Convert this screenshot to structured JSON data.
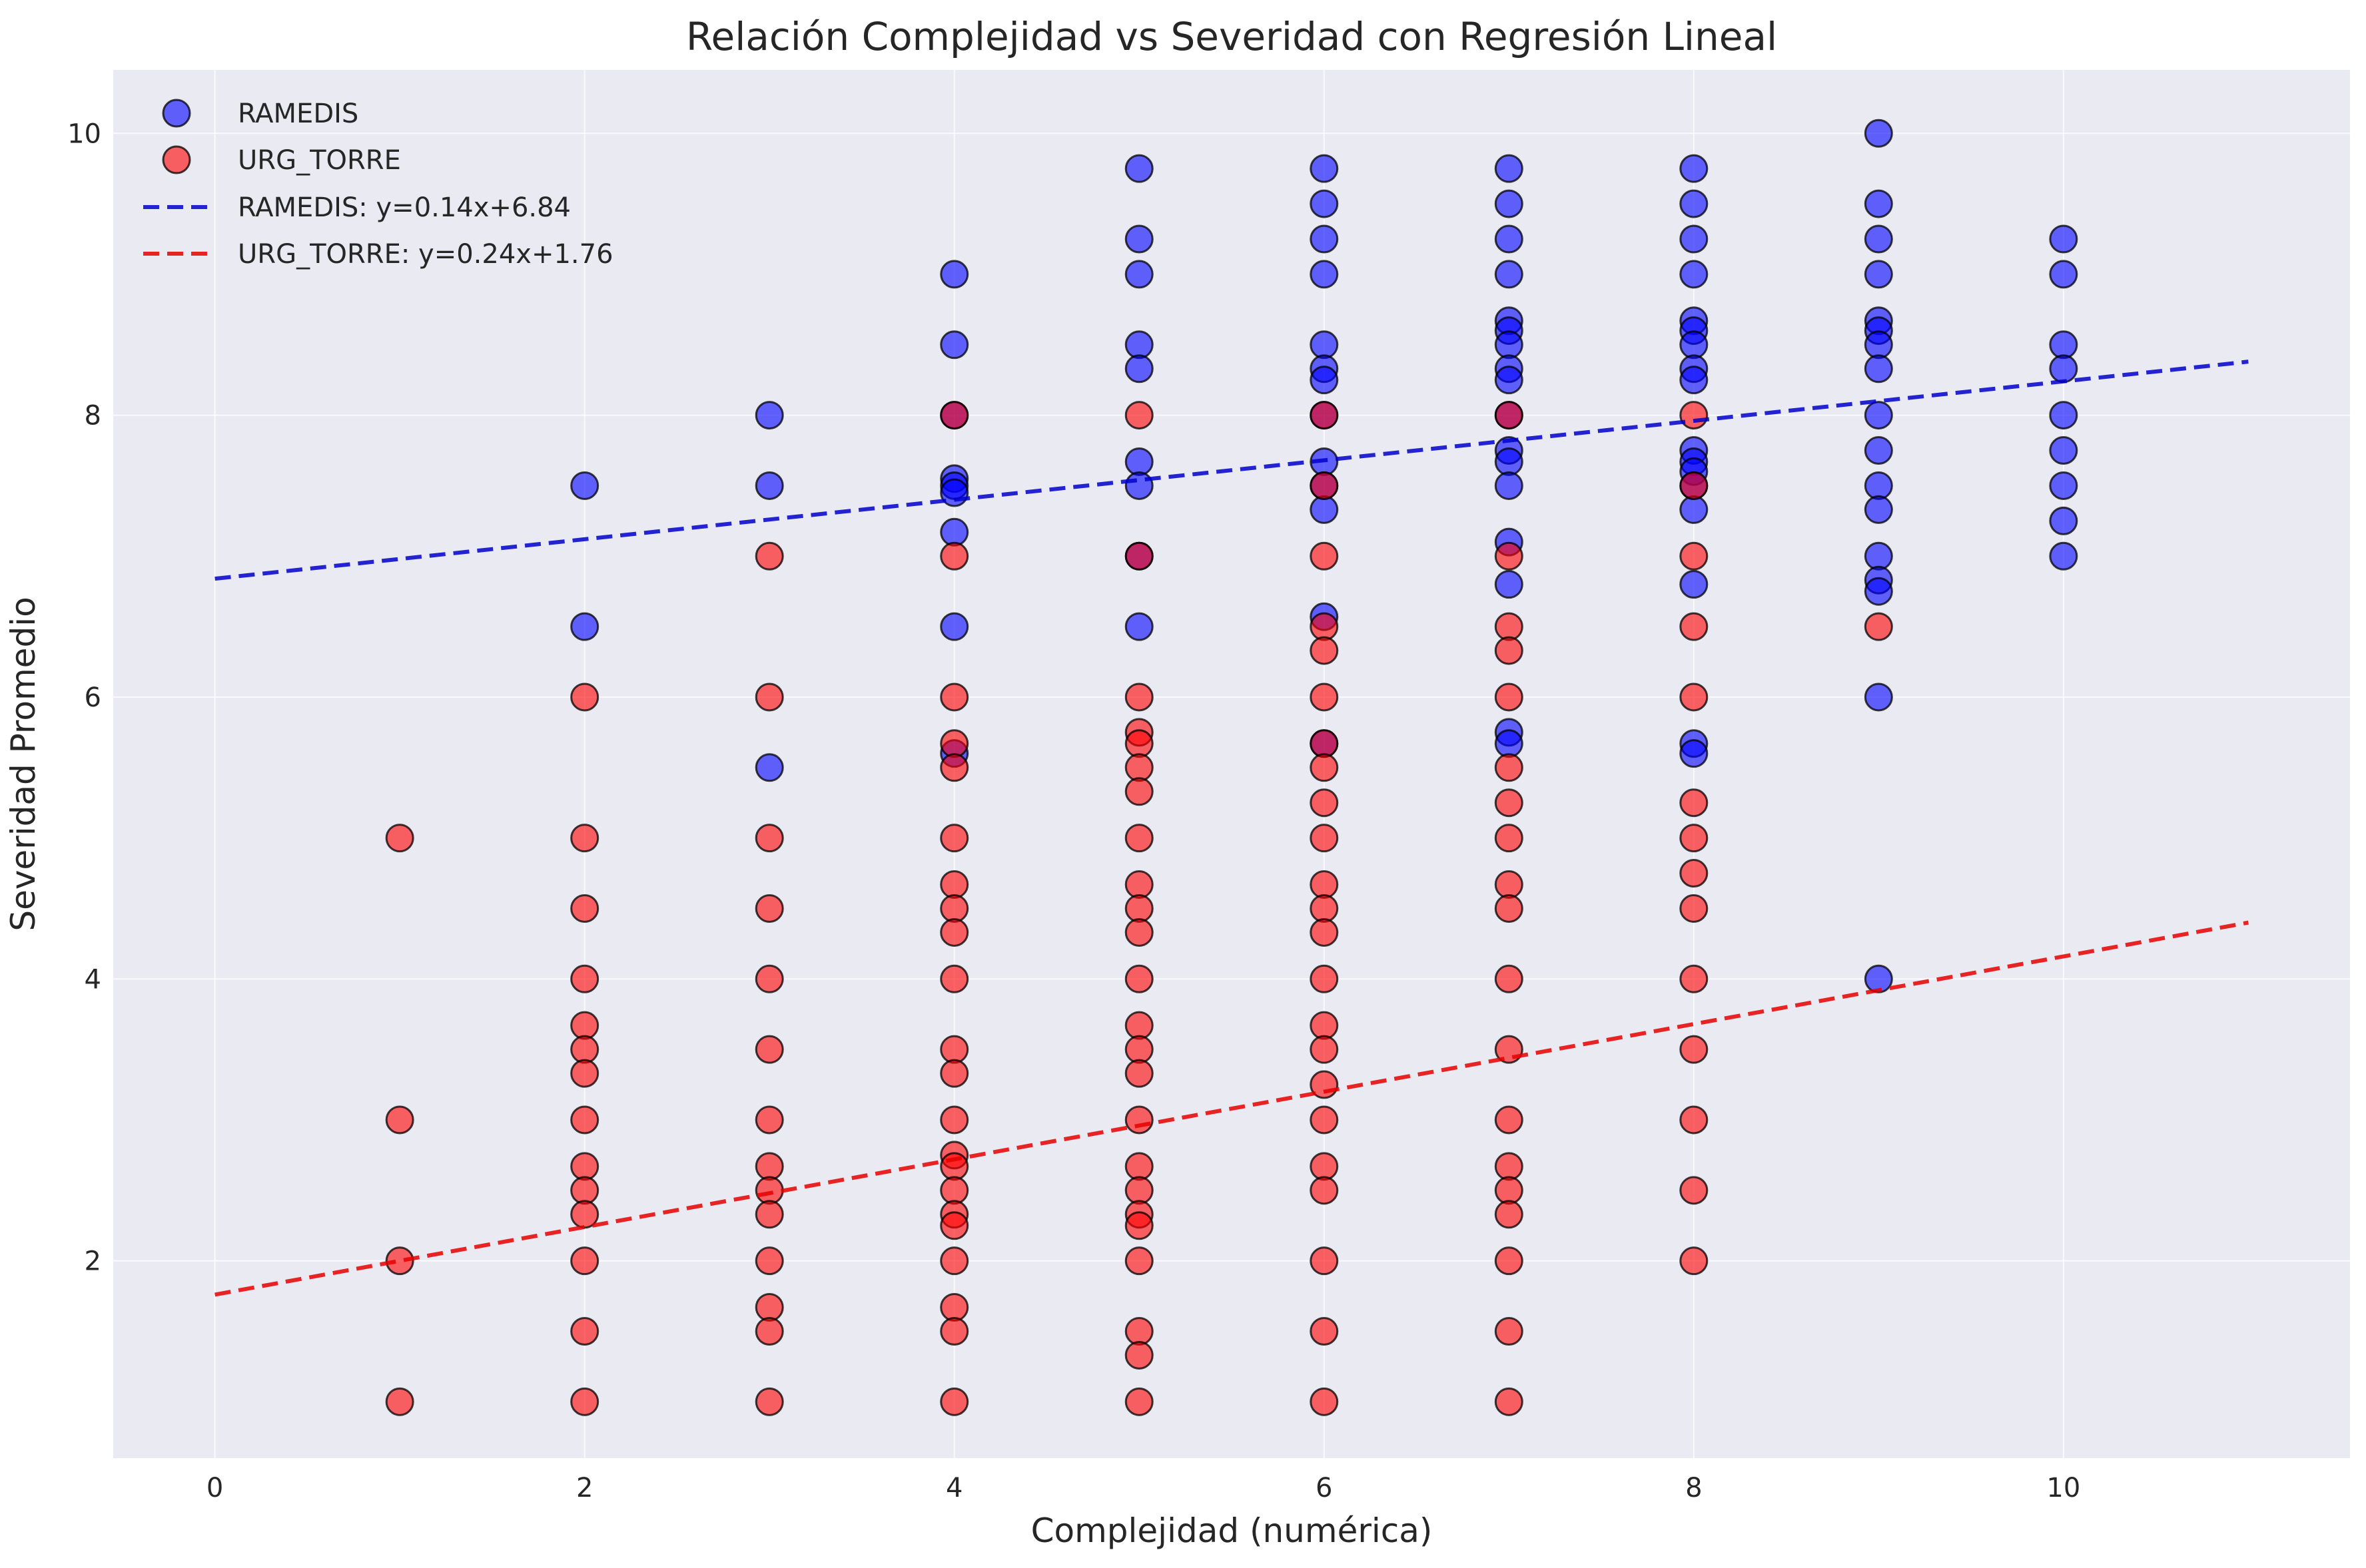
{
  "chart_data": {
    "type": "scatter",
    "title": "Relación Complejidad vs Severidad con Regresión Lineal",
    "xlabel": "Complejidad (numérica)",
    "ylabel": "Severidad Promedio",
    "xlim": [
      -0.55,
      11.55
    ],
    "ylim": [
      0.6,
      10.45
    ],
    "xticks": [
      0,
      2,
      4,
      6,
      8,
      10
    ],
    "yticks": [
      2,
      4,
      6,
      8,
      10
    ],
    "grid": true,
    "legend_position": "top-left",
    "background": "#eaeaf2",
    "series": [
      {
        "name": "RAMEDIS",
        "color": "#0000ff",
        "points": [
          [
            2,
            7.5
          ],
          [
            2,
            6.5
          ],
          [
            3,
            8.0
          ],
          [
            3,
            7.5
          ],
          [
            3,
            5.5
          ],
          [
            4,
            9.0
          ],
          [
            4,
            8.5
          ],
          [
            4,
            8.0
          ],
          [
            4,
            7.55
          ],
          [
            4,
            7.5
          ],
          [
            4,
            7.45
          ],
          [
            4,
            7.17
          ],
          [
            4,
            6.5
          ],
          [
            4,
            5.6
          ],
          [
            5,
            9.75
          ],
          [
            5,
            9.25
          ],
          [
            5,
            9.0
          ],
          [
            5,
            8.5
          ],
          [
            5,
            8.33
          ],
          [
            5,
            7.67
          ],
          [
            5,
            7.5
          ],
          [
            5,
            7.0
          ],
          [
            5,
            6.5
          ],
          [
            6,
            9.75
          ],
          [
            6,
            9.5
          ],
          [
            6,
            9.25
          ],
          [
            6,
            9.0
          ],
          [
            6,
            8.5
          ],
          [
            6,
            8.33
          ],
          [
            6,
            8.25
          ],
          [
            6,
            8.0
          ],
          [
            6,
            7.67
          ],
          [
            6,
            7.5
          ],
          [
            6,
            7.33
          ],
          [
            6,
            6.57
          ],
          [
            6,
            5.67
          ],
          [
            7,
            9.75
          ],
          [
            7,
            9.5
          ],
          [
            7,
            9.25
          ],
          [
            7,
            9.0
          ],
          [
            7,
            8.67
          ],
          [
            7,
            8.6
          ],
          [
            7,
            8.5
          ],
          [
            7,
            8.33
          ],
          [
            7,
            8.25
          ],
          [
            7,
            8.0
          ],
          [
            7,
            7.75
          ],
          [
            7,
            7.67
          ],
          [
            7,
            7.5
          ],
          [
            7,
            7.1
          ],
          [
            7,
            6.8
          ],
          [
            7,
            5.75
          ],
          [
            7,
            5.67
          ],
          [
            8,
            9.75
          ],
          [
            8,
            9.5
          ],
          [
            8,
            9.25
          ],
          [
            8,
            9.0
          ],
          [
            8,
            8.67
          ],
          [
            8,
            8.6
          ],
          [
            8,
            8.5
          ],
          [
            8,
            8.33
          ],
          [
            8,
            8.25
          ],
          [
            8,
            7.75
          ],
          [
            8,
            7.67
          ],
          [
            8,
            7.6
          ],
          [
            8,
            7.5
          ],
          [
            8,
            7.33
          ],
          [
            8,
            6.8
          ],
          [
            8,
            5.67
          ],
          [
            8,
            5.6
          ],
          [
            9,
            10.0
          ],
          [
            9,
            9.5
          ],
          [
            9,
            9.25
          ],
          [
            9,
            9.0
          ],
          [
            9,
            8.67
          ],
          [
            9,
            8.6
          ],
          [
            9,
            8.5
          ],
          [
            9,
            8.33
          ],
          [
            9,
            8.0
          ],
          [
            9,
            7.75
          ],
          [
            9,
            7.5
          ],
          [
            9,
            7.33
          ],
          [
            9,
            7.0
          ],
          [
            9,
            6.83
          ],
          [
            9,
            6.75
          ],
          [
            9,
            6.0
          ],
          [
            9,
            4.0
          ],
          [
            10,
            9.25
          ],
          [
            10,
            9.0
          ],
          [
            10,
            8.5
          ],
          [
            10,
            8.33
          ],
          [
            10,
            8.0
          ],
          [
            10,
            7.75
          ],
          [
            10,
            7.5
          ],
          [
            10,
            7.25
          ],
          [
            10,
            7.0
          ]
        ]
      },
      {
        "name": "URG_TORRE",
        "color": "#ff0000",
        "points": [
          [
            1,
            5.0
          ],
          [
            1,
            3.0
          ],
          [
            1,
            2.0
          ],
          [
            1,
            1.0
          ],
          [
            2,
            6.0
          ],
          [
            2,
            5.0
          ],
          [
            2,
            4.5
          ],
          [
            2,
            4.0
          ],
          [
            2,
            3.67
          ],
          [
            2,
            3.5
          ],
          [
            2,
            3.33
          ],
          [
            2,
            3.0
          ],
          [
            2,
            2.67
          ],
          [
            2,
            2.5
          ],
          [
            2,
            2.33
          ],
          [
            2,
            2.0
          ],
          [
            2,
            1.5
          ],
          [
            2,
            1.0
          ],
          [
            3,
            7.0
          ],
          [
            3,
            6.0
          ],
          [
            3,
            5.0
          ],
          [
            3,
            4.5
          ],
          [
            3,
            4.0
          ],
          [
            3,
            3.5
          ],
          [
            3,
            3.0
          ],
          [
            3,
            2.67
          ],
          [
            3,
            2.5
          ],
          [
            3,
            2.33
          ],
          [
            3,
            2.0
          ],
          [
            3,
            1.67
          ],
          [
            3,
            1.5
          ],
          [
            3,
            1.0
          ],
          [
            4,
            8.0
          ],
          [
            4,
            7.0
          ],
          [
            4,
            6.0
          ],
          [
            4,
            5.67
          ],
          [
            4,
            5.5
          ],
          [
            4,
            5.0
          ],
          [
            4,
            4.67
          ],
          [
            4,
            4.5
          ],
          [
            4,
            4.33
          ],
          [
            4,
            4.0
          ],
          [
            4,
            3.5
          ],
          [
            4,
            3.33
          ],
          [
            4,
            3.0
          ],
          [
            4,
            2.75
          ],
          [
            4,
            2.67
          ],
          [
            4,
            2.5
          ],
          [
            4,
            2.33
          ],
          [
            4,
            2.25
          ],
          [
            4,
            2.0
          ],
          [
            4,
            1.67
          ],
          [
            4,
            1.5
          ],
          [
            4,
            1.0
          ],
          [
            5,
            8.0
          ],
          [
            5,
            7.0
          ],
          [
            5,
            6.0
          ],
          [
            5,
            5.75
          ],
          [
            5,
            5.67
          ],
          [
            5,
            5.5
          ],
          [
            5,
            5.33
          ],
          [
            5,
            5.0
          ],
          [
            5,
            4.67
          ],
          [
            5,
            4.5
          ],
          [
            5,
            4.33
          ],
          [
            5,
            4.0
          ],
          [
            5,
            3.67
          ],
          [
            5,
            3.5
          ],
          [
            5,
            3.33
          ],
          [
            5,
            3.0
          ],
          [
            5,
            2.67
          ],
          [
            5,
            2.5
          ],
          [
            5,
            2.33
          ],
          [
            5,
            2.25
          ],
          [
            5,
            2.0
          ],
          [
            5,
            1.5
          ],
          [
            5,
            1.33
          ],
          [
            5,
            1.0
          ],
          [
            6,
            8.0
          ],
          [
            6,
            7.5
          ],
          [
            6,
            7.0
          ],
          [
            6,
            6.5
          ],
          [
            6,
            6.33
          ],
          [
            6,
            6.0
          ],
          [
            6,
            5.67
          ],
          [
            6,
            5.5
          ],
          [
            6,
            5.25
          ],
          [
            6,
            5.0
          ],
          [
            6,
            4.67
          ],
          [
            6,
            4.5
          ],
          [
            6,
            4.33
          ],
          [
            6,
            4.0
          ],
          [
            6,
            3.67
          ],
          [
            6,
            3.5
          ],
          [
            6,
            3.25
          ],
          [
            6,
            3.0
          ],
          [
            6,
            2.67
          ],
          [
            6,
            2.5
          ],
          [
            6,
            2.0
          ],
          [
            6,
            1.5
          ],
          [
            6,
            1.0
          ],
          [
            7,
            8.0
          ],
          [
            7,
            7.0
          ],
          [
            7,
            6.5
          ],
          [
            7,
            6.33
          ],
          [
            7,
            6.0
          ],
          [
            7,
            5.5
          ],
          [
            7,
            5.25
          ],
          [
            7,
            5.0
          ],
          [
            7,
            4.67
          ],
          [
            7,
            4.5
          ],
          [
            7,
            4.0
          ],
          [
            7,
            3.5
          ],
          [
            7,
            3.0
          ],
          [
            7,
            2.67
          ],
          [
            7,
            2.5
          ],
          [
            7,
            2.33
          ],
          [
            7,
            2.0
          ],
          [
            7,
            1.5
          ],
          [
            7,
            1.0
          ],
          [
            8,
            8.0
          ],
          [
            8,
            7.5
          ],
          [
            8,
            7.0
          ],
          [
            8,
            6.5
          ],
          [
            8,
            6.0
          ],
          [
            8,
            5.25
          ],
          [
            8,
            5.0
          ],
          [
            8,
            4.75
          ],
          [
            8,
            4.5
          ],
          [
            8,
            4.0
          ],
          [
            8,
            3.5
          ],
          [
            8,
            3.0
          ],
          [
            8,
            2.5
          ],
          [
            8,
            2.0
          ],
          [
            9,
            6.5
          ]
        ]
      }
    ],
    "regression_lines": [
      {
        "name": "RAMEDIS: y=0.14x+6.84",
        "color": "#0000cc",
        "slope": 0.14,
        "intercept": 6.84,
        "x_range": [
          0,
          11
        ]
      },
      {
        "name": "URG_TORRE: y=0.24x+1.76",
        "color": "#e60000",
        "slope": 0.24,
        "intercept": 1.76,
        "x_range": [
          0,
          11
        ]
      }
    ]
  }
}
